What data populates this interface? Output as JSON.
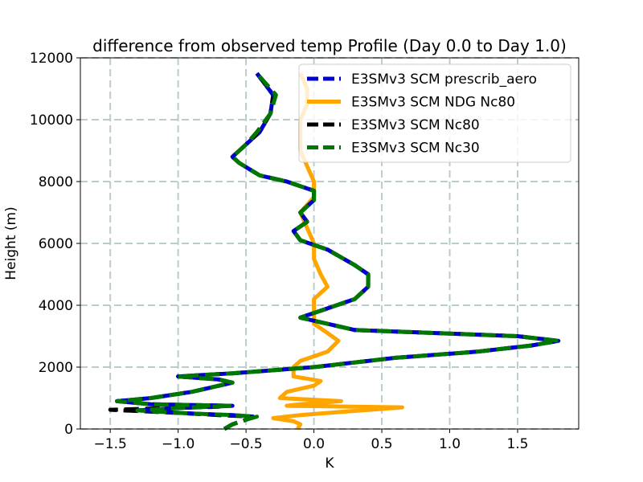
{
  "chart_data": {
    "type": "line",
    "title": "difference from observed temp Profile (Day 0.0 to Day 1.0)",
    "xlabel": "K",
    "ylabel": "Height (m)",
    "xlim": [
      -1.72,
      1.95
    ],
    "ylim": [
      0,
      12000
    ],
    "xticks": [
      -1.5,
      -1.0,
      -0.5,
      0.0,
      0.5,
      1.0,
      1.5
    ],
    "xtick_labels": [
      "−1.5",
      "−1.0",
      "−0.5",
      "0.0",
      "0.5",
      "1.0",
      "1.5"
    ],
    "yticks": [
      0,
      2000,
      4000,
      6000,
      8000,
      10000,
      12000
    ],
    "ytick_labels": [
      "0",
      "2000",
      "4000",
      "6000",
      "8000",
      "10000",
      "12000"
    ],
    "grid": true,
    "legend_position": "top-right",
    "series": [
      {
        "name": "E3SMv3 SCM prescrib_aero",
        "color": "#0000cc",
        "style": "dashed",
        "points": [
          [
            -0.66,
            0
          ],
          [
            -0.6,
            150
          ],
          [
            -0.5,
            300
          ],
          [
            -0.45,
            400
          ],
          [
            -0.6,
            450
          ],
          [
            -0.9,
            500
          ],
          [
            -1.3,
            600
          ],
          [
            -0.9,
            700
          ],
          [
            -0.6,
            750
          ],
          [
            -1.2,
            800
          ],
          [
            -1.45,
            900
          ],
          [
            -1.2,
            1000
          ],
          [
            -0.9,
            1200
          ],
          [
            -0.6,
            1500
          ],
          [
            -0.7,
            1600
          ],
          [
            -1.0,
            1700
          ],
          [
            -0.6,
            1800
          ],
          [
            0.0,
            2000
          ],
          [
            0.6,
            2300
          ],
          [
            1.2,
            2500
          ],
          [
            1.6,
            2700
          ],
          [
            1.8,
            2850
          ],
          [
            1.5,
            3000
          ],
          [
            0.9,
            3100
          ],
          [
            0.3,
            3200
          ],
          [
            0.1,
            3400
          ],
          [
            -0.1,
            3600
          ],
          [
            0.1,
            3900
          ],
          [
            0.3,
            4200
          ],
          [
            0.4,
            4600
          ],
          [
            0.4,
            5000
          ],
          [
            0.3,
            5300
          ],
          [
            0.1,
            5800
          ],
          [
            -0.1,
            6100
          ],
          [
            -0.15,
            6400
          ],
          [
            -0.05,
            6700
          ],
          [
            -0.1,
            7000
          ],
          [
            0.0,
            7400
          ],
          [
            0.0,
            7700
          ],
          [
            -0.2,
            8000
          ],
          [
            -0.4,
            8200
          ],
          [
            -0.55,
            8600
          ],
          [
            -0.6,
            8800
          ],
          [
            -0.5,
            9200
          ],
          [
            -0.4,
            9600
          ],
          [
            -0.32,
            10200
          ],
          [
            -0.3,
            10800
          ],
          [
            -0.42,
            11500
          ]
        ]
      },
      {
        "name": "E3SMv3 SCM NDG Nc80",
        "color": "#ffa500",
        "style": "solid",
        "points": [
          [
            -0.12,
            0
          ],
          [
            -0.1,
            150
          ],
          [
            -0.15,
            250
          ],
          [
            -0.3,
            350
          ],
          [
            -0.1,
            450
          ],
          [
            0.2,
            550
          ],
          [
            0.65,
            700
          ],
          [
            -0.2,
            750
          ],
          [
            -0.1,
            800
          ],
          [
            0.2,
            900
          ],
          [
            -0.25,
            1000
          ],
          [
            -0.2,
            1200
          ],
          [
            0.0,
            1400
          ],
          [
            0.05,
            1550
          ],
          [
            -0.15,
            1700
          ],
          [
            -0.15,
            2000
          ],
          [
            -0.1,
            2200
          ],
          [
            0.1,
            2500
          ],
          [
            0.18,
            2850
          ],
          [
            0.1,
            3100
          ],
          [
            0.0,
            3400
          ],
          [
            0.0,
            3800
          ],
          [
            0.0,
            4200
          ],
          [
            0.1,
            4600
          ],
          [
            0.05,
            5000
          ],
          [
            0.0,
            5500
          ],
          [
            0.0,
            6000
          ],
          [
            -0.05,
            6500
          ],
          [
            -0.1,
            7000
          ],
          [
            0.0,
            7500
          ],
          [
            0.0,
            8000
          ],
          [
            -0.05,
            8500
          ],
          [
            -0.1,
            9000
          ],
          [
            -0.1,
            9500
          ],
          [
            -0.1,
            10000
          ],
          [
            -0.05,
            10500
          ],
          [
            -0.05,
            11000
          ],
          [
            -0.1,
            11500
          ]
        ]
      },
      {
        "name": "E3SMv3 SCM Nc80",
        "color": "#000000",
        "style": "dashed",
        "points": [
          [
            -0.66,
            0
          ],
          [
            -0.6,
            150
          ],
          [
            -0.5,
            300
          ],
          [
            -0.45,
            400
          ],
          [
            -0.7,
            450
          ],
          [
            -1.0,
            520
          ],
          [
            -1.5,
            620
          ],
          [
            -1.0,
            680
          ],
          [
            -0.7,
            720
          ],
          [
            -1.2,
            800
          ],
          [
            -1.45,
            900
          ],
          [
            -1.2,
            1000
          ],
          [
            -0.9,
            1200
          ],
          [
            -0.6,
            1500
          ],
          [
            -0.7,
            1600
          ],
          [
            -1.0,
            1700
          ],
          [
            -0.6,
            1800
          ],
          [
            0.0,
            2000
          ],
          [
            0.6,
            2300
          ],
          [
            1.2,
            2500
          ],
          [
            1.6,
            2700
          ],
          [
            1.8,
            2850
          ],
          [
            1.5,
            3000
          ],
          [
            0.9,
            3100
          ],
          [
            0.3,
            3200
          ],
          [
            0.1,
            3400
          ],
          [
            -0.1,
            3600
          ],
          [
            0.1,
            3900
          ],
          [
            0.3,
            4200
          ],
          [
            0.4,
            4600
          ],
          [
            0.4,
            5000
          ],
          [
            0.3,
            5300
          ],
          [
            0.1,
            5800
          ],
          [
            -0.1,
            6100
          ],
          [
            -0.15,
            6400
          ],
          [
            -0.05,
            6700
          ],
          [
            -0.1,
            7000
          ],
          [
            0.0,
            7400
          ],
          [
            0.0,
            7700
          ],
          [
            -0.2,
            8000
          ],
          [
            -0.4,
            8200
          ],
          [
            -0.55,
            8600
          ],
          [
            -0.6,
            8800
          ],
          [
            -0.5,
            9200
          ],
          [
            -0.4,
            9600
          ],
          [
            -0.32,
            10200
          ],
          [
            -0.3,
            10800
          ],
          [
            -0.42,
            11500
          ]
        ]
      },
      {
        "name": "E3SMv3 SCM Nc30",
        "color": "#007700",
        "style": "dashed",
        "points": [
          [
            -0.66,
            0
          ],
          [
            -0.6,
            150
          ],
          [
            -0.5,
            300
          ],
          [
            -0.42,
            400
          ],
          [
            -0.6,
            450
          ],
          [
            -0.9,
            500
          ],
          [
            -1.3,
            600
          ],
          [
            -0.9,
            700
          ],
          [
            -0.6,
            750
          ],
          [
            -1.2,
            800
          ],
          [
            -1.45,
            900
          ],
          [
            -1.2,
            1000
          ],
          [
            -0.9,
            1200
          ],
          [
            -0.6,
            1500
          ],
          [
            -0.7,
            1600
          ],
          [
            -1.0,
            1700
          ],
          [
            -0.6,
            1800
          ],
          [
            0.0,
            2000
          ],
          [
            0.6,
            2300
          ],
          [
            1.2,
            2500
          ],
          [
            1.6,
            2700
          ],
          [
            1.8,
            2850
          ],
          [
            1.5,
            3000
          ],
          [
            0.9,
            3100
          ],
          [
            0.3,
            3200
          ],
          [
            0.1,
            3400
          ],
          [
            -0.1,
            3600
          ],
          [
            0.1,
            3900
          ],
          [
            0.3,
            4200
          ],
          [
            0.4,
            4600
          ],
          [
            0.4,
            5000
          ],
          [
            0.3,
            5300
          ],
          [
            0.1,
            5800
          ],
          [
            -0.1,
            6100
          ],
          [
            -0.15,
            6400
          ],
          [
            -0.05,
            6700
          ],
          [
            -0.1,
            7000
          ],
          [
            0.0,
            7400
          ],
          [
            0.0,
            7700
          ],
          [
            -0.2,
            8000
          ],
          [
            -0.4,
            8200
          ],
          [
            -0.55,
            8600
          ],
          [
            -0.6,
            8800
          ],
          [
            -0.5,
            9200
          ],
          [
            -0.42,
            9600
          ],
          [
            -0.32,
            10200
          ],
          [
            -0.28,
            10800
          ],
          [
            -0.42,
            11500
          ]
        ]
      }
    ]
  }
}
